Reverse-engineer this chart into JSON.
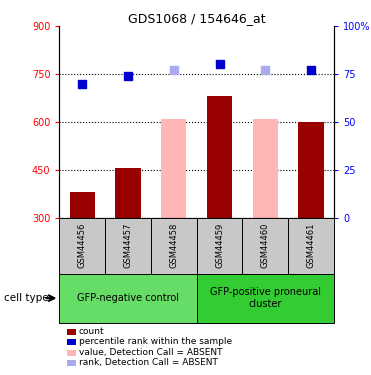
{
  "title": "GDS1068 / 154646_at",
  "samples": [
    "GSM44456",
    "GSM44457",
    "GSM44458",
    "GSM44459",
    "GSM44460",
    "GSM44461"
  ],
  "bar_values": [
    380,
    455,
    610,
    680,
    610,
    600
  ],
  "bar_absent": [
    false,
    false,
    true,
    false,
    true,
    false
  ],
  "rank_values": [
    70,
    74,
    77,
    80,
    77,
    77
  ],
  "rank_absent": [
    false,
    false,
    true,
    false,
    true,
    false
  ],
  "ylim_left": [
    300,
    900
  ],
  "ylim_right": [
    0,
    100
  ],
  "yticks_left": [
    300,
    450,
    600,
    750,
    900
  ],
  "yticks_right": [
    0,
    25,
    50,
    75,
    100
  ],
  "ytick_labels_left": [
    "300",
    "450",
    "600",
    "750",
    "900"
  ],
  "ytick_labels_right": [
    "0",
    "25",
    "50",
    "75",
    "100%"
  ],
  "hlines": [
    450,
    600,
    750
  ],
  "groups": [
    {
      "label": "GFP-negative control",
      "samples": [
        0,
        1,
        2
      ],
      "color": "#66DD66"
    },
    {
      "label": "GFP-positive proneural\ncluster",
      "samples": [
        3,
        4,
        5
      ],
      "color": "#33CC33"
    }
  ],
  "bar_color_present": "#990000",
  "bar_color_absent": "#FFB6B6",
  "rank_color_present": "#0000CC",
  "rank_color_absent": "#AAAAEE",
  "sample_box_color": "#C8C8C8",
  "legend_items": [
    {
      "label": "count",
      "color": "#990000"
    },
    {
      "label": "percentile rank within the sample",
      "color": "#0000CC"
    },
    {
      "label": "value, Detection Call = ABSENT",
      "color": "#FFB6B6"
    },
    {
      "label": "rank, Detection Call = ABSENT",
      "color": "#AAAAEE"
    }
  ],
  "cell_type_label": "cell type"
}
